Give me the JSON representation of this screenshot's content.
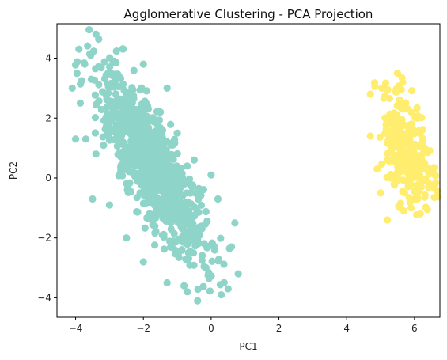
{
  "chart_data": {
    "type": "scatter",
    "title": "Agglomerative Clustering - PCA Projection",
    "xlabel": "PC1",
    "ylabel": "PC2",
    "xlim": [
      -4.55,
      6.75
    ],
    "ylim": [
      -4.65,
      5.15
    ],
    "xticks": [
      -4,
      -2,
      0,
      2,
      4,
      6
    ],
    "yticks": [
      -4,
      -2,
      0,
      2,
      4
    ],
    "grid": false,
    "legend": "none",
    "series": [
      {
        "color": "#8fd4c8",
        "point_count": 900,
        "center": [
          -1.75,
          0.45
        ],
        "principal_axis": [
          0.42,
          -0.91
        ],
        "spread_major": 1.75,
        "spread_minor": 0.42,
        "sample_points": [
          [
            -3.6,
            4.95
          ],
          [
            -3.4,
            4.8
          ],
          [
            -3.9,
            4.3
          ],
          [
            -4.1,
            3.0
          ],
          [
            -4.0,
            1.3
          ],
          [
            -3.7,
            1.3
          ],
          [
            -3.4,
            0.8
          ],
          [
            -3.5,
            -0.7
          ],
          [
            -3.0,
            -0.9
          ],
          [
            -2.5,
            -2.0
          ],
          [
            -2.0,
            -2.8
          ],
          [
            -1.3,
            -3.5
          ],
          [
            -0.8,
            -3.6
          ],
          [
            -0.7,
            -3.8
          ],
          [
            -0.4,
            -4.1
          ],
          [
            0.3,
            -3.9
          ],
          [
            0.5,
            -3.7
          ],
          [
            0.8,
            -3.2
          ],
          [
            0.6,
            -2.3
          ],
          [
            0.7,
            -1.5
          ],
          [
            0.2,
            -0.7
          ],
          [
            0.0,
            0.1
          ],
          [
            -0.5,
            0.6
          ],
          [
            -1.0,
            1.5
          ],
          [
            -1.5,
            2.2
          ],
          [
            -1.3,
            3.0
          ],
          [
            -2.0,
            3.8
          ],
          [
            -2.6,
            4.3
          ],
          [
            -1.9,
            0.4
          ],
          [
            -1.0,
            -1.0
          ],
          [
            -2.5,
            1.6
          ],
          [
            -0.7,
            -2.2
          ]
        ]
      },
      {
        "color": "#ffed6f",
        "point_count": 260,
        "center": [
          5.75,
          0.9
        ],
        "principal_axis": [
          0.22,
          -0.98
        ],
        "spread_major": 0.95,
        "spread_minor": 0.32,
        "sample_points": [
          [
            4.7,
            2.8
          ],
          [
            4.7,
            1.4
          ],
          [
            5.5,
            3.5
          ],
          [
            5.65,
            3.2
          ],
          [
            6.1,
            2.0
          ],
          [
            6.3,
            1.0
          ],
          [
            6.3,
            0.5
          ],
          [
            6.2,
            -0.3
          ],
          [
            5.9,
            -1.0
          ],
          [
            5.2,
            -1.4
          ],
          [
            4.9,
            0.3
          ],
          [
            5.0,
            -0.5
          ],
          [
            5.5,
            0.0
          ],
          [
            5.3,
            1.8
          ],
          [
            5.8,
            2.3
          ],
          [
            5.6,
            0.9
          ]
        ]
      }
    ]
  }
}
